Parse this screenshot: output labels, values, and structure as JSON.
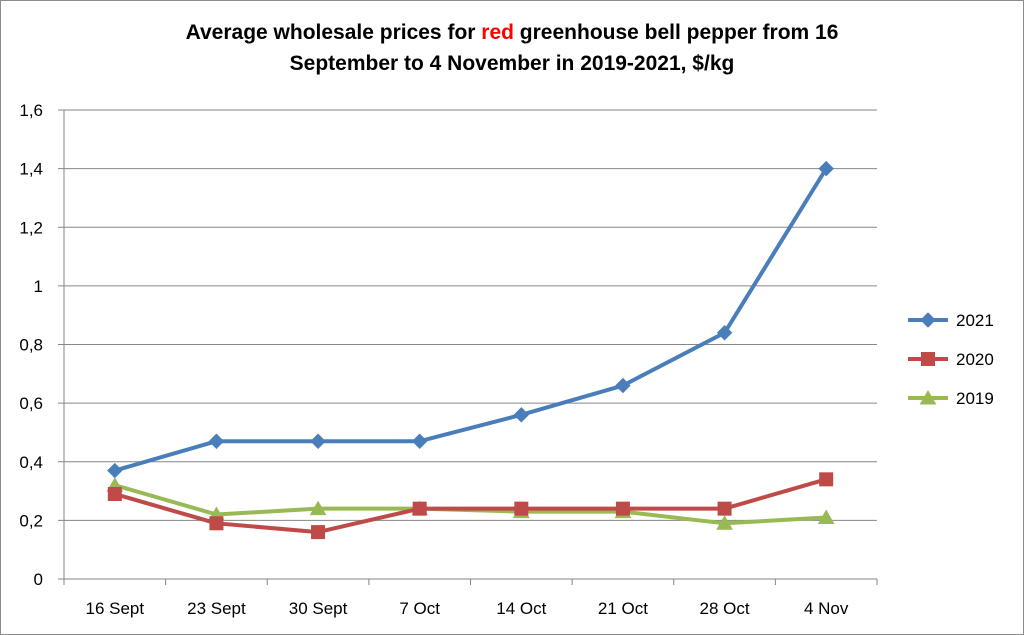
{
  "chart_data": {
    "type": "line",
    "title": {
      "before": "Average wholesale prices for ",
      "highlight": "red",
      "after_line1": " greenhouse bell pepper from 16",
      "line2": "September to 4 November in 2019-2021, $/kg"
    },
    "categories": [
      "16 Sept",
      "23 Sept",
      "30 Sept",
      "7 Oct",
      "14 Oct",
      "21 Oct",
      "28 Oct",
      "4 Nov"
    ],
    "ylim": [
      0,
      1.6
    ],
    "yticks": [
      "0",
      "0,2",
      "0,4",
      "0,6",
      "0,8",
      "1",
      "1,2",
      "1,4",
      "1,6"
    ],
    "grid": true,
    "legend_position": "right",
    "series": [
      {
        "name": "2021",
        "color": "#4a7ebb",
        "marker": "diamond",
        "values": [
          0.37,
          0.47,
          0.47,
          0.47,
          0.56,
          0.66,
          0.84,
          1.4
        ]
      },
      {
        "name": "2020",
        "color": "#be4b48",
        "marker": "square",
        "values": [
          0.29,
          0.19,
          0.16,
          0.24,
          0.24,
          0.24,
          0.24,
          0.34
        ]
      },
      {
        "name": "2019",
        "color": "#98b954",
        "marker": "triangle",
        "values": [
          0.32,
          0.22,
          0.24,
          0.24,
          0.23,
          0.23,
          0.19,
          0.21
        ]
      }
    ]
  }
}
